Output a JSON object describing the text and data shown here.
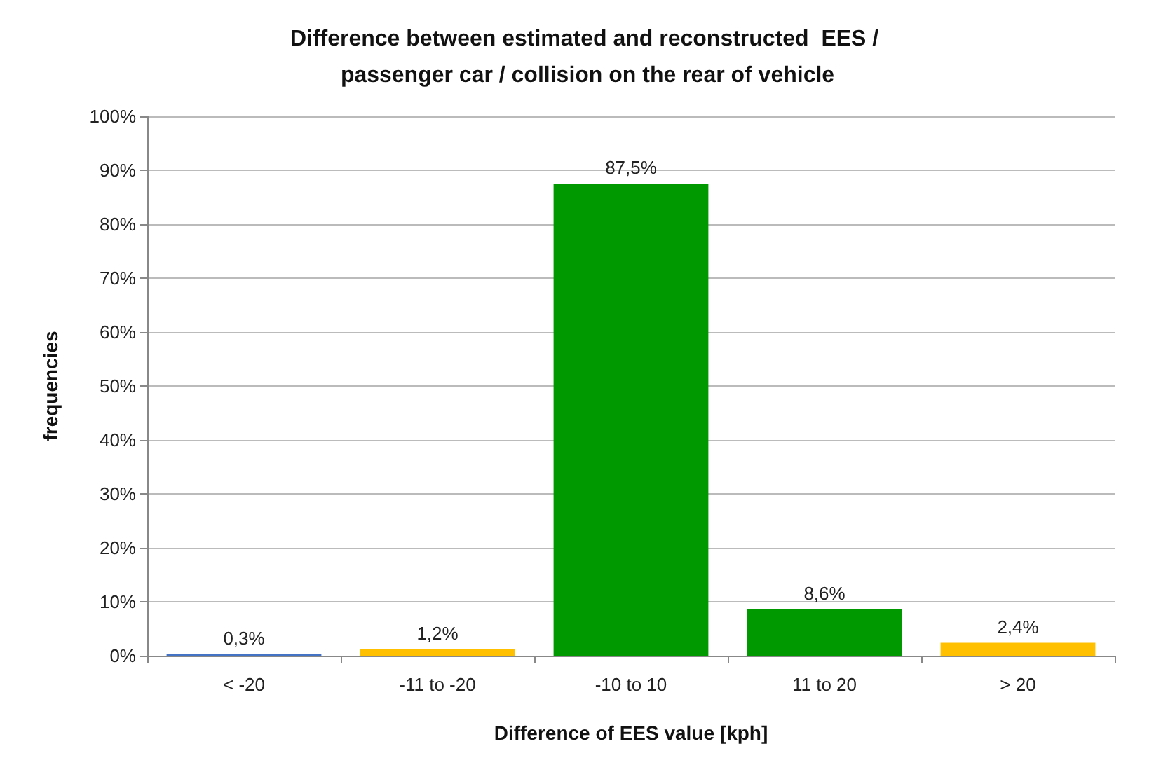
{
  "chart_data": {
    "type": "bar",
    "title": "Difference between estimated and reconstructed  EES / passenger car / collision on the rear of vehicle",
    "xlabel": "Difference of EES value [kph]",
    "ylabel": "frequencies",
    "categories": [
      "< -20",
      "-11 to -20",
      "-10 to 10",
      "11 to 20",
      "> 20"
    ],
    "values": [
      0.3,
      1.2,
      87.5,
      8.6,
      2.4
    ],
    "colors": [
      "#4472c4",
      "#ffc000",
      "#009900",
      "#009900",
      "#ffc000"
    ],
    "value_labels": [
      "0,3%",
      "1,2%",
      "87,5%",
      "8,6%",
      "2,4%"
    ],
    "ylim": [
      0,
      100
    ],
    "yticks": [
      {
        "value": 0,
        "label": "0%"
      },
      {
        "value": 10,
        "label": "10%"
      },
      {
        "value": 20,
        "label": "20%"
      },
      {
        "value": 30,
        "label": "30%"
      },
      {
        "value": 40,
        "label": "40%"
      },
      {
        "value": 50,
        "label": "50%"
      },
      {
        "value": 60,
        "label": "60%"
      },
      {
        "value": 70,
        "label": "70%"
      },
      {
        "value": 80,
        "label": "80%"
      },
      {
        "value": 90,
        "label": "90%"
      },
      {
        "value": 100,
        "label": "100%"
      }
    ],
    "grid": "y"
  }
}
